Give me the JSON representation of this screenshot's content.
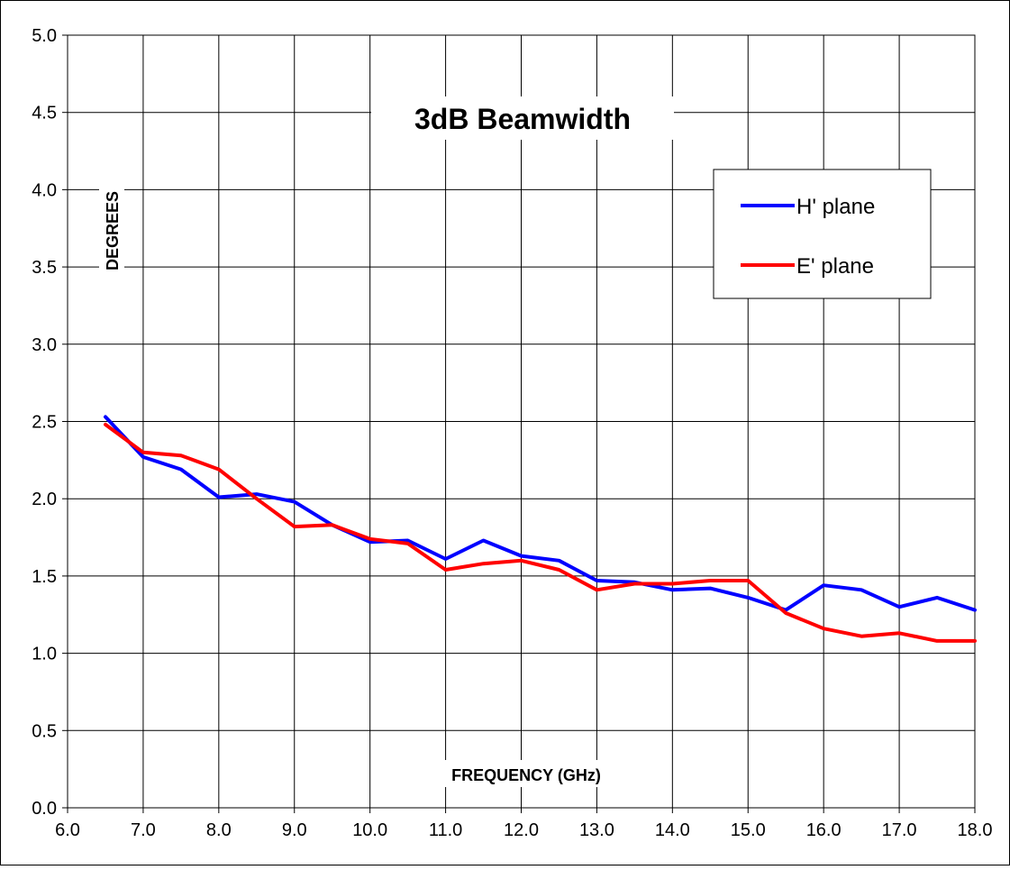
{
  "chart_data": {
    "type": "line",
    "title": "3dB Beamwidth",
    "xlabel": "FREQUENCY (GHz)",
    "ylabel": "DEGREES",
    "xlim": [
      6.0,
      18.0
    ],
    "ylim": [
      0.0,
      5.0
    ],
    "x_ticks": [
      "6.0",
      "7.0",
      "8.0",
      "9.0",
      "10.0",
      "11.0",
      "12.0",
      "13.0",
      "14.0",
      "15.0",
      "16.0",
      "17.0",
      "18.0"
    ],
    "y_ticks": [
      "0.0",
      "0.5",
      "1.0",
      "1.5",
      "2.0",
      "2.5",
      "3.0",
      "3.5",
      "4.0",
      "4.5",
      "5.0"
    ],
    "grid": true,
    "legend_position": "top-right",
    "x": [
      6.5,
      7.0,
      7.5,
      8.0,
      8.5,
      9.0,
      9.5,
      10.0,
      10.5,
      11.0,
      11.5,
      12.0,
      12.5,
      13.0,
      13.5,
      14.0,
      14.5,
      15.0,
      15.5,
      16.0,
      16.5,
      17.0,
      17.5,
      18.0
    ],
    "series": [
      {
        "name": "H' plane",
        "color": "#0000ff",
        "values": [
          2.53,
          2.27,
          2.19,
          2.01,
          2.03,
          1.98,
          1.83,
          1.72,
          1.73,
          1.61,
          1.73,
          1.63,
          1.6,
          1.47,
          1.46,
          1.41,
          1.42,
          1.36,
          1.28,
          1.44,
          1.41,
          1.3,
          1.36,
          1.28
        ]
      },
      {
        "name": "E' plane",
        "color": "#ff0000",
        "values": [
          2.48,
          2.3,
          2.28,
          2.19,
          2.0,
          1.82,
          1.83,
          1.74,
          1.71,
          1.54,
          1.58,
          1.6,
          1.54,
          1.41,
          1.45,
          1.45,
          1.47,
          1.47,
          1.26,
          1.16,
          1.11,
          1.13,
          1.08,
          1.08
        ]
      }
    ]
  }
}
